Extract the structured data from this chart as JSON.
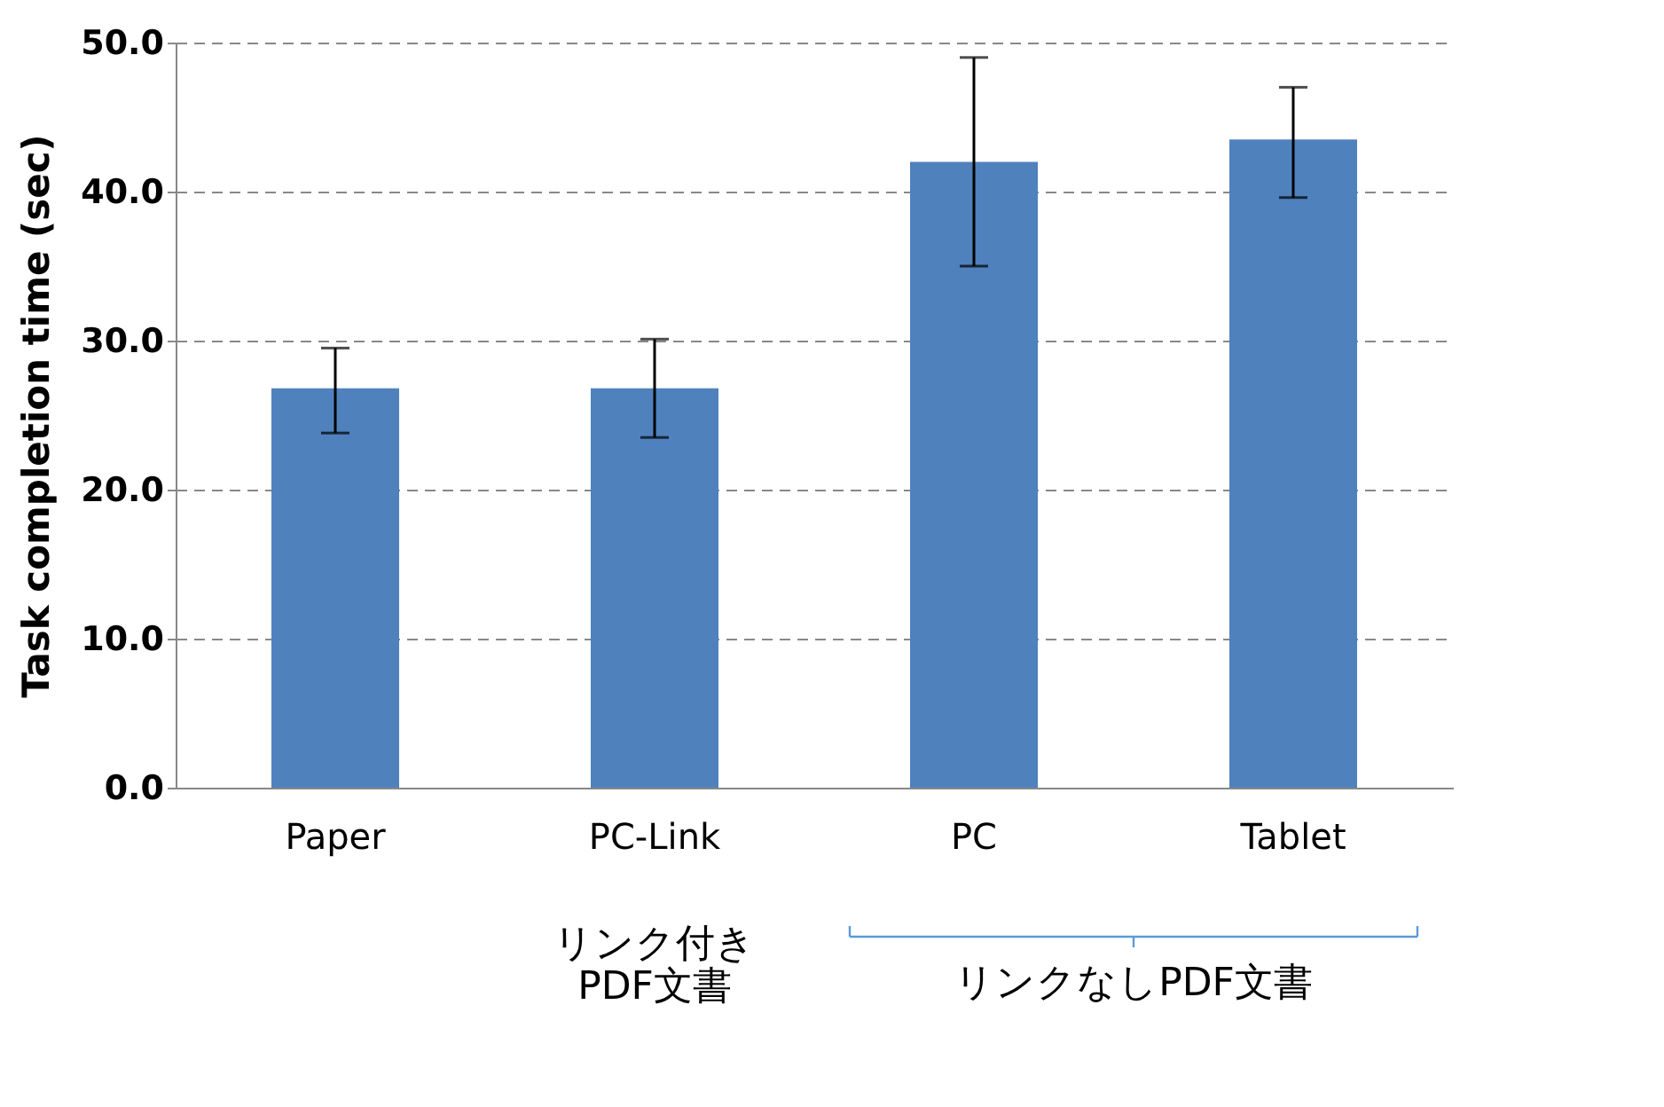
{
  "chart_data": {
    "type": "bar",
    "ylabel": "Task completion time (sec)",
    "categories": [
      "Paper",
      "PC-Link",
      "PC",
      "Tablet"
    ],
    "values": [
      26.8,
      26.8,
      42.0,
      43.5
    ],
    "errors": [
      [
        23.8,
        29.5
      ],
      [
        23.5,
        30.1
      ],
      [
        35.0,
        49.0
      ],
      [
        39.6,
        47.0
      ]
    ],
    "color": "#4f81bd",
    "ylim": [
      0,
      50
    ],
    "yticks": [
      {
        "value": 0,
        "label": "0.0"
      },
      {
        "value": 10,
        "label": "10.0"
      },
      {
        "value": 20,
        "label": "20.0"
      },
      {
        "value": 30,
        "label": "30.0"
      },
      {
        "value": 40,
        "label": "40.0"
      },
      {
        "value": 50,
        "label": "50.0"
      }
    ],
    "grid": "y",
    "annotations": [
      "リンク付き\nPDF文書",
      "リンクなしPDF文書"
    ]
  }
}
